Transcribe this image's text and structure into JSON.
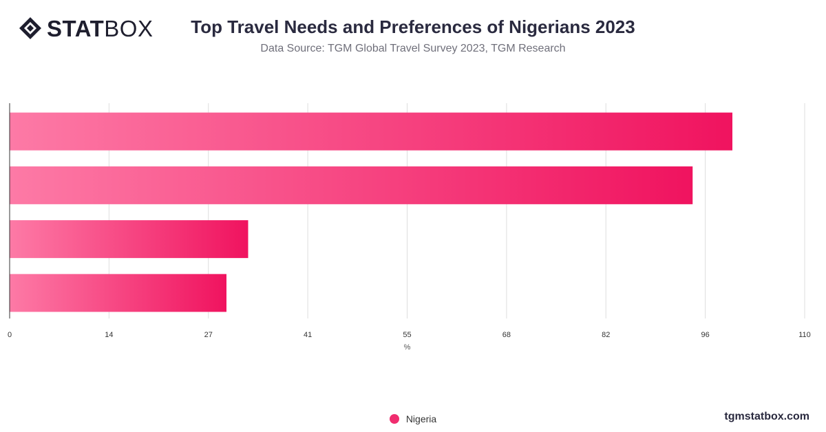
{
  "brand": {
    "logo_text_bold": "STAT",
    "logo_text_light": "BOX",
    "website": "tgmstatbox.com"
  },
  "header": {
    "title": "Top Travel Needs and Preferences of Nigerians 2023",
    "subtitle": "Data Source: TGM Global Travel Survey 2023, TGM Research"
  },
  "colors": {
    "bar_start": "#fd7aa6",
    "bar_end": "#f0135f",
    "grid": "#dddddd",
    "axis": "#333333"
  },
  "chart_data": {
    "type": "bar",
    "orientation": "horizontal",
    "categories": [
      "",
      "",
      "",
      ""
    ],
    "series": [
      {
        "name": "Nigeria",
        "values": [
          100,
          94.5,
          33,
          30
        ]
      }
    ],
    "xlabel": "%",
    "xlim": [
      0,
      110
    ],
    "xticks": [
      "0",
      "14",
      "27",
      "41",
      "55",
      "68",
      "82",
      "96",
      "110"
    ],
    "grid": true,
    "legend": "bottom-center"
  }
}
